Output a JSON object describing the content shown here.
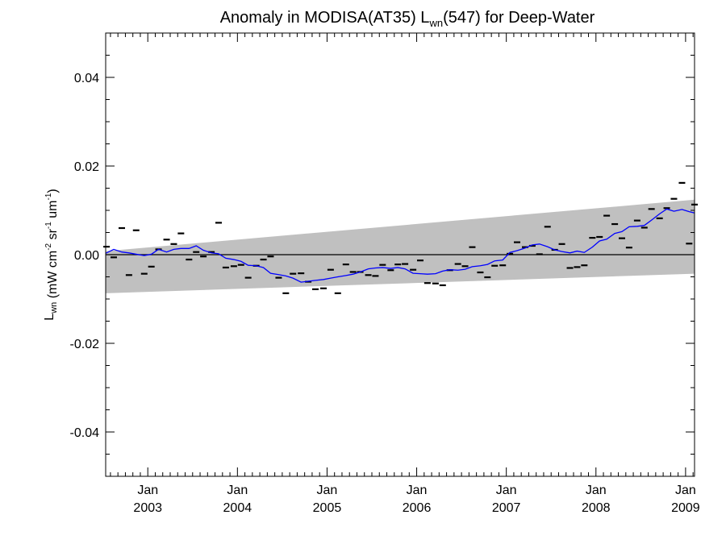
{
  "chart_data": {
    "type": "scatter",
    "title": {
      "main": "Anomaly in MODISA(AT35) L",
      "sub": "wn",
      "rest": "(547) for Deep-Water"
    },
    "ylabel": {
      "base": "L",
      "sub": "wn",
      "units_parts": [
        {
          "t": " (mW cm",
          "sup": false
        },
        {
          "t": "-2",
          "sup": true
        },
        {
          "t": " sr",
          "sup": false
        },
        {
          "t": "-1",
          "sup": true
        },
        {
          "t": " um",
          "sup": false
        },
        {
          "t": "-1",
          "sup": true
        },
        {
          "t": ")",
          "sup": false
        }
      ]
    },
    "xlim": [
      2002.53,
      2009.1
    ],
    "ylim": [
      -0.05,
      0.05
    ],
    "x_ticks": [
      {
        "x": 2003.0,
        "month": "Jan",
        "year": "2003"
      },
      {
        "x": 2004.0,
        "month": "Jan",
        "year": "2004"
      },
      {
        "x": 2005.0,
        "month": "Jan",
        "year": "2005"
      },
      {
        "x": 2006.0,
        "month": "Jan",
        "year": "2006"
      },
      {
        "x": 2007.0,
        "month": "Jan",
        "year": "2007"
      },
      {
        "x": 2008.0,
        "month": "Jan",
        "year": "2008"
      },
      {
        "x": 2009.0,
        "month": "Jan",
        "year": "2009"
      }
    ],
    "y_ticks": [
      {
        "v": 0.04,
        "label": "0.04"
      },
      {
        "v": 0.02,
        "label": "0.02"
      },
      {
        "v": 0.0,
        "label": "0.00"
      },
      {
        "v": -0.02,
        "label": "-0.02"
      },
      {
        "v": -0.04,
        "label": "-0.04"
      }
    ],
    "band": {
      "upper": [
        [
          2002.53,
          0.0008
        ],
        [
          2009.1,
          0.0124
        ]
      ],
      "lower": [
        [
          2002.53,
          -0.0087
        ],
        [
          2009.1,
          -0.0043
        ]
      ],
      "color": "#c0c0c0"
    },
    "zero_line": 0.0,
    "monthly_points": [
      [
        2002.54,
        0.0018
      ],
      [
        2002.62,
        -0.0006
      ],
      [
        2002.71,
        0.006
      ],
      [
        2002.79,
        -0.0046
      ],
      [
        2002.87,
        0.0055
      ],
      [
        2002.96,
        -0.0043
      ],
      [
        2003.04,
        -0.0027
      ],
      [
        2003.12,
        0.0012
      ],
      [
        2003.21,
        0.0034
      ],
      [
        2003.29,
        0.0024
      ],
      [
        2003.37,
        0.0048
      ],
      [
        2003.46,
        -0.0011
      ],
      [
        2003.54,
        0.0006
      ],
      [
        2003.62,
        -0.0004
      ],
      [
        2003.71,
        0.0006
      ],
      [
        2003.79,
        0.0072
      ],
      [
        2003.87,
        -0.0029
      ],
      [
        2003.96,
        -0.0026
      ],
      [
        2004.04,
        -0.0023
      ],
      [
        2004.12,
        -0.0052
      ],
      [
        2004.21,
        -0.0025
      ],
      [
        2004.29,
        -0.0011
      ],
      [
        2004.37,
        -0.0004
      ],
      [
        2004.46,
        -0.0052
      ],
      [
        2004.54,
        -0.0087
      ],
      [
        2004.62,
        -0.0043
      ],
      [
        2004.71,
        -0.0042
      ],
      [
        2004.79,
        -0.0061
      ],
      [
        2004.87,
        -0.0078
      ],
      [
        2004.96,
        -0.0076
      ],
      [
        2005.04,
        -0.0034
      ],
      [
        2005.12,
        -0.0087
      ],
      [
        2005.21,
        -0.0022
      ],
      [
        2005.29,
        -0.0039
      ],
      [
        2005.37,
        -0.0039
      ],
      [
        2005.46,
        -0.0046
      ],
      [
        2005.54,
        -0.0048
      ],
      [
        2005.62,
        -0.0023
      ],
      [
        2005.71,
        -0.0035
      ],
      [
        2005.79,
        -0.0022
      ],
      [
        2005.87,
        -0.0021
      ],
      [
        2005.96,
        -0.0034
      ],
      [
        2006.04,
        -0.0013
      ],
      [
        2006.12,
        -0.0064
      ],
      [
        2006.21,
        -0.0065
      ],
      [
        2006.29,
        -0.0069
      ],
      [
        2006.37,
        -0.0035
      ],
      [
        2006.46,
        -0.0021
      ],
      [
        2006.54,
        -0.0026
      ],
      [
        2006.62,
        0.0017
      ],
      [
        2006.71,
        -0.004
      ],
      [
        2006.79,
        -0.0051
      ],
      [
        2006.87,
        -0.0025
      ],
      [
        2006.96,
        -0.0024
      ],
      [
        2007.04,
        0.0002
      ],
      [
        2007.12,
        0.0028
      ],
      [
        2007.21,
        0.0017
      ],
      [
        2007.29,
        0.002
      ],
      [
        2007.37,
        0.0001
      ],
      [
        2007.46,
        0.0063
      ],
      [
        2007.54,
        0.0011
      ],
      [
        2007.62,
        0.0024
      ],
      [
        2007.71,
        -0.003
      ],
      [
        2007.79,
        -0.0028
      ],
      [
        2007.87,
        -0.0024
      ],
      [
        2007.96,
        0.0038
      ],
      [
        2008.04,
        0.004
      ],
      [
        2008.12,
        0.0088
      ],
      [
        2008.21,
        0.0069
      ],
      [
        2008.29,
        0.0037
      ],
      [
        2008.37,
        0.0016
      ],
      [
        2008.46,
        0.0077
      ],
      [
        2008.54,
        0.0061
      ],
      [
        2008.62,
        0.0103
      ],
      [
        2008.71,
        0.0082
      ],
      [
        2008.79,
        0.0105
      ],
      [
        2008.87,
        0.0126
      ],
      [
        2008.96,
        0.0162
      ],
      [
        2009.04,
        0.0025
      ],
      [
        2009.1,
        0.0113
      ]
    ],
    "running_mean": [
      [
        2002.53,
        0.0003
      ],
      [
        2002.62,
        0.0012
      ],
      [
        2002.71,
        0.0006
      ],
      [
        2002.79,
        0.0004
      ],
      [
        2002.87,
        0.0001
      ],
      [
        2002.96,
        -0.0002
      ],
      [
        2003.04,
        0.0001
      ],
      [
        2003.12,
        0.0012
      ],
      [
        2003.21,
        0.0006
      ],
      [
        2003.29,
        0.0012
      ],
      [
        2003.37,
        0.0014
      ],
      [
        2003.46,
        0.0014
      ],
      [
        2003.54,
        0.002
      ],
      [
        2003.62,
        0.001
      ],
      [
        2003.71,
        0.0004
      ],
      [
        2003.79,
        0.0002
      ],
      [
        2003.87,
        -0.0008
      ],
      [
        2003.96,
        -0.0011
      ],
      [
        2004.04,
        -0.0015
      ],
      [
        2004.12,
        -0.0024
      ],
      [
        2004.21,
        -0.0025
      ],
      [
        2004.29,
        -0.0029
      ],
      [
        2004.37,
        -0.0042
      ],
      [
        2004.46,
        -0.0045
      ],
      [
        2004.54,
        -0.0048
      ],
      [
        2004.62,
        -0.0053
      ],
      [
        2004.71,
        -0.0062
      ],
      [
        2004.79,
        -0.006
      ],
      [
        2004.87,
        -0.0058
      ],
      [
        2004.96,
        -0.0056
      ],
      [
        2005.04,
        -0.0053
      ],
      [
        2005.12,
        -0.005
      ],
      [
        2005.21,
        -0.0047
      ],
      [
        2005.29,
        -0.0044
      ],
      [
        2005.37,
        -0.0039
      ],
      [
        2005.46,
        -0.0032
      ],
      [
        2005.54,
        -0.003
      ],
      [
        2005.62,
        -0.0029
      ],
      [
        2005.71,
        -0.0031
      ],
      [
        2005.79,
        -0.0029
      ],
      [
        2005.87,
        -0.0032
      ],
      [
        2005.96,
        -0.0042
      ],
      [
        2006.04,
        -0.0043
      ],
      [
        2006.12,
        -0.0044
      ],
      [
        2006.21,
        -0.0043
      ],
      [
        2006.29,
        -0.0037
      ],
      [
        2006.37,
        -0.0034
      ],
      [
        2006.46,
        -0.0035
      ],
      [
        2006.54,
        -0.0033
      ],
      [
        2006.62,
        -0.0027
      ],
      [
        2006.71,
        -0.0025
      ],
      [
        2006.79,
        -0.0022
      ],
      [
        2006.87,
        -0.0014
      ],
      [
        2006.96,
        -0.0012
      ],
      [
        2007.04,
        0.0005
      ],
      [
        2007.12,
        0.0009
      ],
      [
        2007.21,
        0.0015
      ],
      [
        2007.29,
        0.0022
      ],
      [
        2007.37,
        0.0024
      ],
      [
        2007.46,
        0.0018
      ],
      [
        2007.54,
        0.0011
      ],
      [
        2007.62,
        0.0007
      ],
      [
        2007.71,
        0.0004
      ],
      [
        2007.79,
        0.0008
      ],
      [
        2007.87,
        0.0005
      ],
      [
        2007.96,
        0.0017
      ],
      [
        2008.04,
        0.0031
      ],
      [
        2008.12,
        0.0035
      ],
      [
        2008.21,
        0.0048
      ],
      [
        2008.29,
        0.0052
      ],
      [
        2008.37,
        0.0063
      ],
      [
        2008.46,
        0.0064
      ],
      [
        2008.54,
        0.0066
      ],
      [
        2008.62,
        0.0078
      ],
      [
        2008.71,
        0.0092
      ],
      [
        2008.79,
        0.0103
      ],
      [
        2008.87,
        0.0098
      ],
      [
        2008.96,
        0.0102
      ],
      [
        2009.04,
        0.0097
      ],
      [
        2009.1,
        0.0094
      ]
    ],
    "colors": {
      "running_mean": "#0000ff",
      "points": "#000000",
      "band": "#c0c0c0",
      "axis": "#000000"
    },
    "grid": false,
    "legend": "none"
  }
}
